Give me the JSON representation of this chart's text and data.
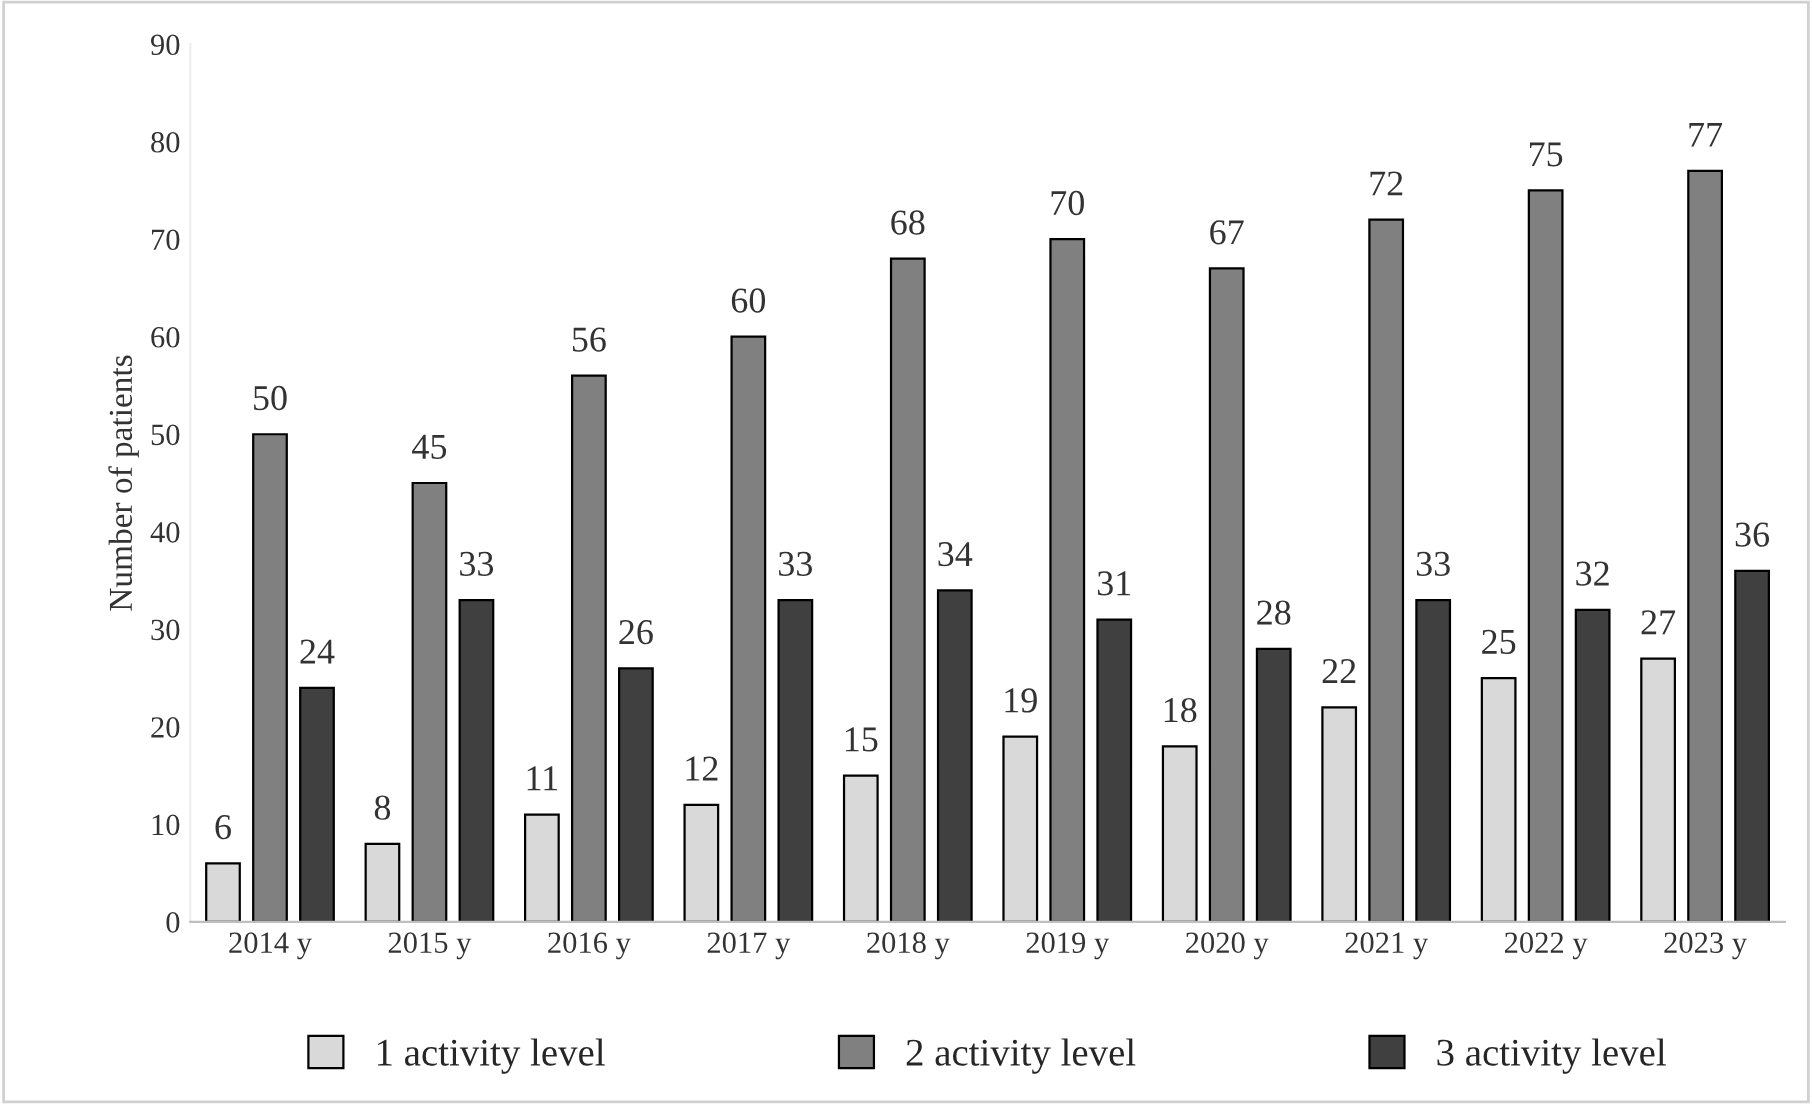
{
  "chart_data": {
    "type": "bar",
    "ylabel": "Number of patients",
    "categories": [
      "2014 y",
      "2015 y",
      "2016 y",
      "2017 y",
      "2018 y",
      "2019 y",
      "2020 y",
      "2021 y",
      "2022 y",
      "2023 y"
    ],
    "series": [
      {
        "name": "1 activity level",
        "color": "#d9d9d9",
        "values": [
          6,
          8,
          11,
          12,
          15,
          19,
          18,
          22,
          25,
          27
        ]
      },
      {
        "name": "2 activity level",
        "color": "#808080",
        "values": [
          50,
          45,
          56,
          60,
          68,
          70,
          67,
          72,
          75,
          77
        ]
      },
      {
        "name": "3 activity level",
        "color": "#404040",
        "values": [
          24,
          33,
          26,
          33,
          34,
          31,
          28,
          33,
          32,
          36
        ]
      }
    ],
    "ylim": [
      0,
      90
    ],
    "yticks": [
      0,
      10,
      20,
      30,
      40,
      50,
      60,
      70,
      80,
      90
    ],
    "data_labels": true,
    "grid": false,
    "legend": "bottom"
  }
}
